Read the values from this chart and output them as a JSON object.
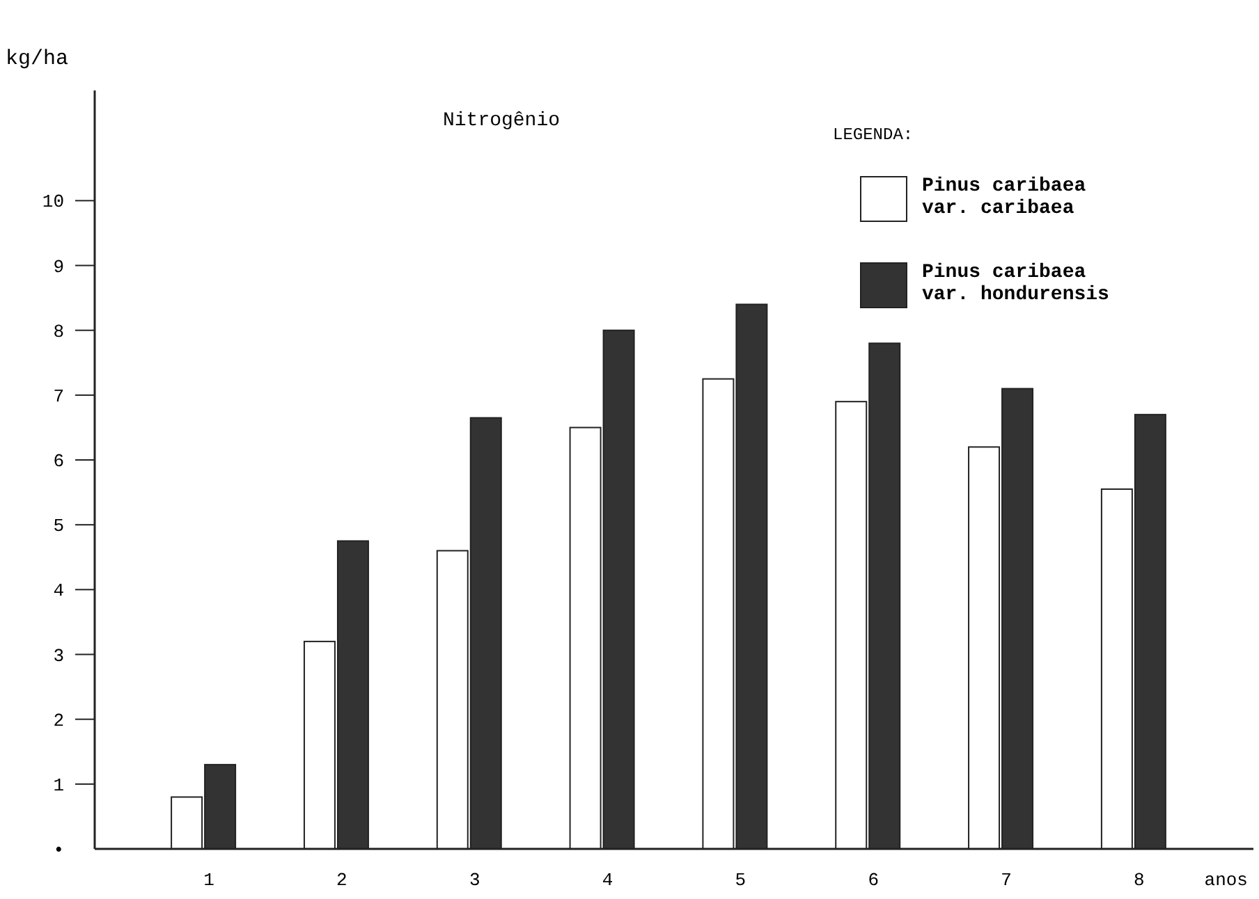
{
  "chart_data": {
    "type": "bar",
    "title": "Nitrogênio",
    "ylabel": "kg/ha",
    "xlabel": "anos",
    "legend_title": "LEGENDA:",
    "legend": "top right",
    "categories": [
      "1",
      "2",
      "3",
      "4",
      "5",
      "6",
      "7",
      "8"
    ],
    "series": [
      {
        "name": "Pinus caribaea\nvar. caribaea",
        "color": "#ffffff",
        "values": [
          0.8,
          3.2,
          4.6,
          6.5,
          7.25,
          6.9,
          6.2,
          5.55
        ]
      },
      {
        "name": "Pinus caribaea\nvar. hondurensis",
        "color": "#333333",
        "values": [
          1.3,
          4.75,
          6.65,
          8.0,
          8.4,
          7.8,
          7.1,
          6.7
        ]
      }
    ],
    "ylim": [
      0,
      11.7
    ],
    "yticks": [
      {
        "value": 0,
        "label": "•"
      },
      1,
      2,
      3,
      4,
      5,
      6,
      7,
      8,
      9,
      10
    ]
  }
}
